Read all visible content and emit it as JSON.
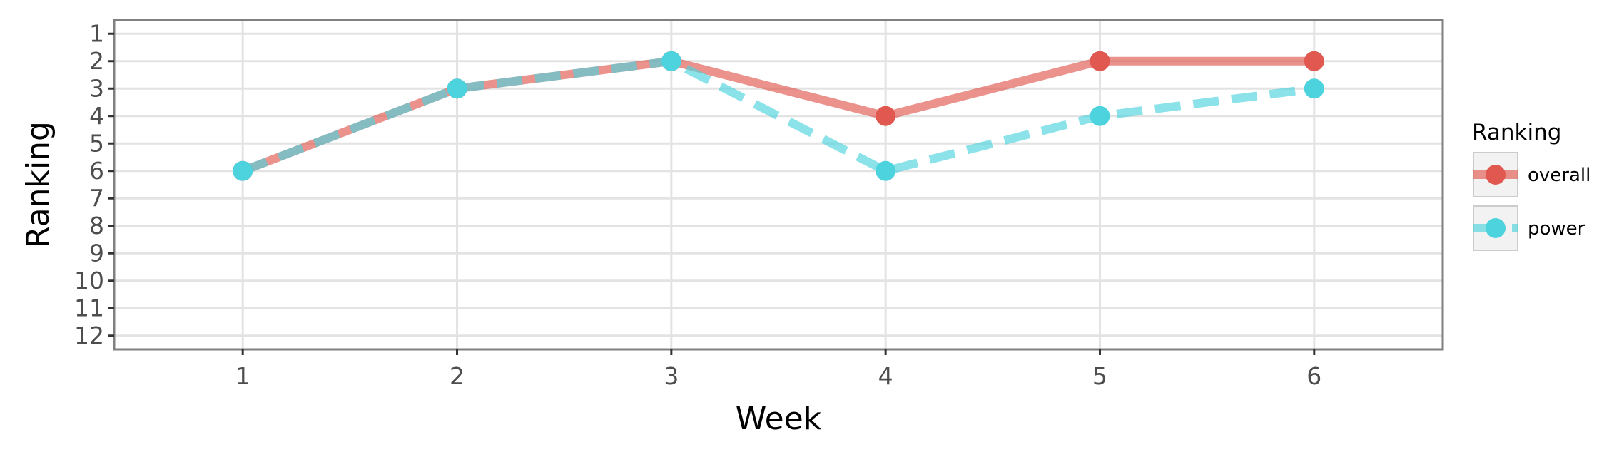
{
  "chart_data": {
    "type": "line",
    "title": "",
    "xlabel": "Week",
    "ylabel": "Ranking",
    "x": [
      1,
      2,
      3,
      4,
      5,
      6
    ],
    "xlim": [
      0.4,
      6.6
    ],
    "xticks": [
      "1",
      "2",
      "3",
      "4",
      "5",
      "6"
    ],
    "ylim": [
      12.5,
      0.5
    ],
    "y_reversed": true,
    "yticks": [
      "1",
      "2",
      "3",
      "4",
      "5",
      "6",
      "7",
      "8",
      "9",
      "10",
      "11",
      "12"
    ],
    "grid": true,
    "series": [
      {
        "name": "overall",
        "values": [
          6,
          3,
          2,
          4,
          2,
          2
        ],
        "color": "#e0584f",
        "line_style": "solid"
      },
      {
        "name": "power",
        "values": [
          6,
          3,
          2,
          6,
          4,
          3
        ],
        "color": "#4dd3dd",
        "line_style": "dashed"
      }
    ],
    "legend": {
      "title": "Ranking",
      "position": "right"
    }
  }
}
